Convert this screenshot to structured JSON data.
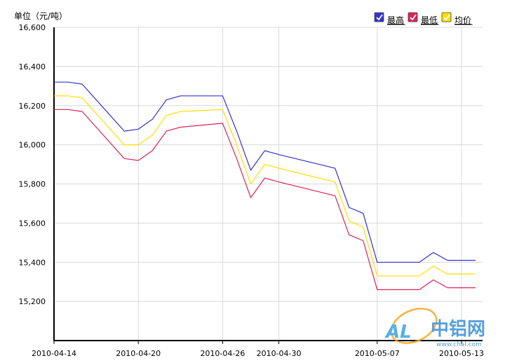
{
  "chart_data": {
    "type": "line",
    "unit_label": "单位（元/吨）",
    "x": [
      "2010-04-14",
      "2010-04-15",
      "2010-04-16",
      "2010-04-19",
      "2010-04-20",
      "2010-04-21",
      "2010-04-22",
      "2010-04-23",
      "2010-04-26",
      "2010-04-27",
      "2010-04-28",
      "2010-04-29",
      "2010-04-30",
      "2010-05-04",
      "2010-05-05",
      "2010-05-06",
      "2010-05-07",
      "2010-05-10",
      "2010-05-11",
      "2010-05-12",
      "2010-05-13",
      "2010-05-14"
    ],
    "x_tick_labels": [
      "2010-04-14",
      "2010-04-20",
      "2010-04-26",
      "2010-04-30",
      "2010-05-07",
      "2010-05-13"
    ],
    "ylim": [
      15000,
      16600
    ],
    "y_ticks": [
      15200,
      15400,
      15600,
      15800,
      16000,
      16200,
      16400,
      16600
    ],
    "y_tick_labels": [
      "15,200",
      "15,400",
      "15,600",
      "15,800",
      "16,000",
      "16,200",
      "16,400",
      "16,600"
    ],
    "grid": true,
    "legend_position": "top-right",
    "series": [
      {
        "name": "最高",
        "color": "#3333cc",
        "values": [
          16320,
          16320,
          16310,
          16070,
          16080,
          16130,
          16230,
          16250,
          16250,
          16070,
          15870,
          15970,
          15950,
          15880,
          15680,
          15650,
          15400,
          15400,
          15450,
          15410,
          15410,
          15410
        ]
      },
      {
        "name": "最低",
        "color": "#dd2255",
        "values": [
          16180,
          16180,
          16170,
          15930,
          15920,
          15970,
          16070,
          16090,
          16110,
          15930,
          15730,
          15830,
          15810,
          15740,
          15540,
          15510,
          15260,
          15260,
          15310,
          15270,
          15270,
          15270
        ]
      },
      {
        "name": "均价",
        "color": "#ffdd00",
        "values": [
          16250,
          16250,
          16240,
          16000,
          16000,
          16050,
          16150,
          16170,
          16180,
          16000,
          15800,
          15900,
          15880,
          15810,
          15610,
          15580,
          15330,
          15330,
          15380,
          15340,
          15340,
          15340
        ]
      }
    ]
  },
  "watermark": {
    "logo_letters": "AL",
    "brand": "中铝网",
    "url": "www.chal.com"
  }
}
